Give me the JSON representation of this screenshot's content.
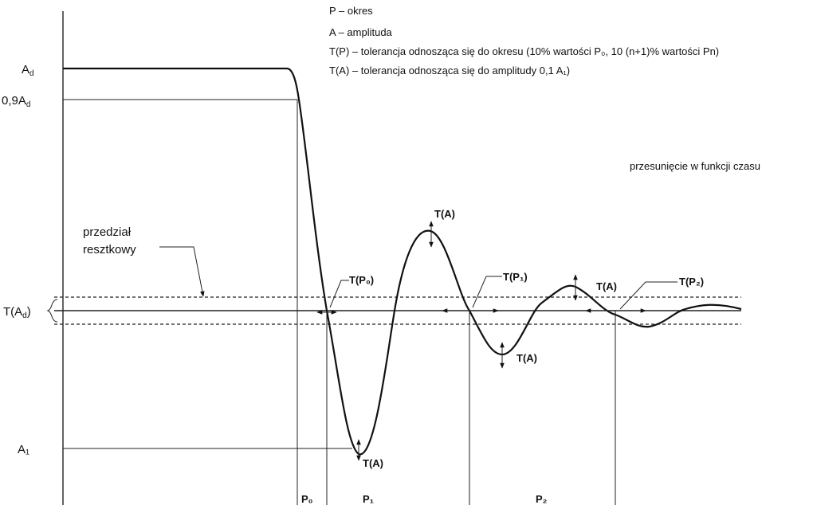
{
  "legend": {
    "line1": "P – okres",
    "line2": "A – amplituda",
    "line3": "T(P) – tolerancja odnosząca się do okresu (10% wartości P₀, 10 (n+1)% wartości Pn)",
    "line4": "T(A) – tolerancja odnosząca się do amplitudy 0,1 A₁)"
  },
  "axis_labels": {
    "ad": "Ad",
    "ad_sub": "d",
    "ad09": "0,9Ad",
    "a1": "A₁",
    "tad": "T(Ad)",
    "time_label": "przesunięcie w funkcji czasu"
  },
  "annotations": {
    "residual_line1": "przedział",
    "residual_line2": "resztkowy",
    "tp0": "T(P₀)",
    "tp1": "T(P₁)",
    "tp2": "T(P₂)",
    "ta": "T(A)"
  },
  "periods": {
    "p0": "P₀",
    "p1": "P₁",
    "p2": "P₂"
  }
}
